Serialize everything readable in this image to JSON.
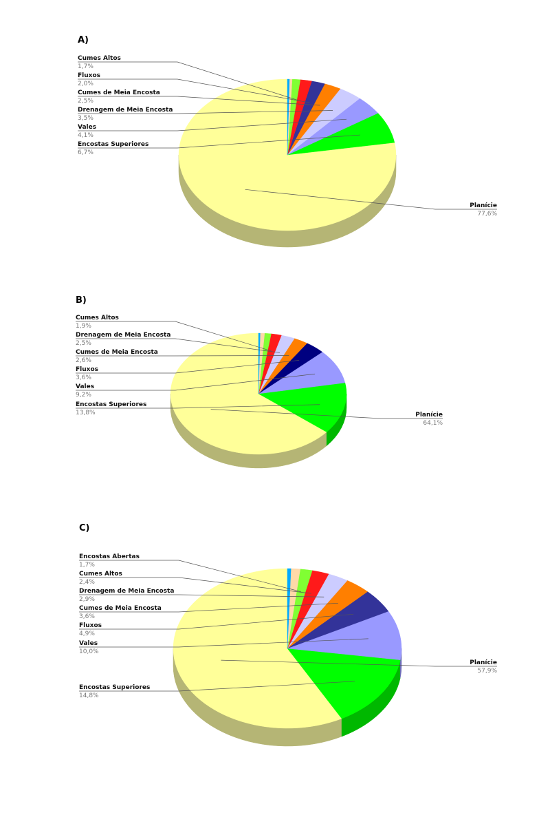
{
  "chart_data": [
    {
      "type": "pie",
      "panel_label": "A)",
      "colors": {
        "Planície": "#ffff99",
        "Encostas Superiores": "#00ff00",
        "Vales": "#9999ff",
        "Drenagem de Meia Encosta": "#ccccff",
        "Cumes de Meia Encosta": "#ff7f00",
        "Fluxos": "#333399",
        "Cumes Altos": "#ff1a1a",
        "Encostas Abertas": "#80ff33",
        "Outros": "#ffd9a8",
        "Outros2": "#00aaff"
      },
      "slices": [
        {
          "label": "Planície",
          "value_text": "77,6%",
          "value": 77.6,
          "color": "#ffff99",
          "side": "dark"
        },
        {
          "label": "Encostas Superiores",
          "value_text": "6,7%",
          "value": 6.7,
          "color": "#00ff00"
        },
        {
          "label": "Vales",
          "value_text": "4,1%",
          "value": 4.1,
          "color": "#9999ff"
        },
        {
          "label": "Drenagem de Meia Encosta",
          "value_text": "3,5%",
          "value": 3.5,
          "color": "#ccccff"
        },
        {
          "label": "Cumes de Meia Encosta",
          "value_text": "2,5%",
          "value": 2.5,
          "color": "#ff7f00"
        },
        {
          "label": "Fluxos",
          "value_text": "2,0%",
          "value": 2.0,
          "color": "#333399"
        },
        {
          "label": "Cumes Altos",
          "value_text": "1,7%",
          "value": 1.7,
          "color": "#ff1a1a"
        },
        {
          "label": "",
          "value_text": "",
          "value": 1.2,
          "color": "#80ff33"
        },
        {
          "label": "",
          "value_text": "",
          "value": 0.4,
          "color": "#ffd9a8"
        },
        {
          "label": "",
          "value_text": "",
          "value": 0.3,
          "color": "#00aaff"
        }
      ]
    },
    {
      "type": "pie",
      "panel_label": "B)",
      "slices": [
        {
          "label": "Planície",
          "value_text": "64,1%",
          "value": 64.1,
          "color": "#ffff99"
        },
        {
          "label": "Encostas Superiores",
          "value_text": "13,8%",
          "value": 13.8,
          "color": "#00ff00"
        },
        {
          "label": "Vales",
          "value_text": "9,2%",
          "value": 9.2,
          "color": "#9999ff"
        },
        {
          "label": "Fluxos",
          "value_text": "3,6%",
          "value": 3.6,
          "color": "#000080"
        },
        {
          "label": "Cumes de Meia Encosta",
          "value_text": "2,6%",
          "value": 2.6,
          "color": "#ff7f00"
        },
        {
          "label": "Drenagem de Meia Encosta",
          "value_text": "2,5%",
          "value": 2.5,
          "color": "#ccccff"
        },
        {
          "label": "Cumes Altos",
          "value_text": "1,9%",
          "value": 1.9,
          "color": "#ff1a1a"
        },
        {
          "label": "",
          "value_text": "",
          "value": 1.2,
          "color": "#80ff33"
        },
        {
          "label": "",
          "value_text": "",
          "value": 0.8,
          "color": "#ffd9a8"
        },
        {
          "label": "",
          "value_text": "",
          "value": 0.3,
          "color": "#00aaff"
        }
      ]
    },
    {
      "type": "pie",
      "panel_label": "C)",
      "slices": [
        {
          "label": "Planície",
          "value_text": "57,9%",
          "value": 57.9,
          "color": "#ffff99"
        },
        {
          "label": "Encostas Superiores",
          "value_text": "14,8%",
          "value": 14.8,
          "color": "#00ff00"
        },
        {
          "label": "Vales",
          "value_text": "10,0%",
          "value": 10.0,
          "color": "#9999ff"
        },
        {
          "label": "Fluxos",
          "value_text": "4,9%",
          "value": 4.9,
          "color": "#333399"
        },
        {
          "label": "Cumes de Meia Encosta",
          "value_text": "3,6%",
          "value": 3.6,
          "color": "#ff7f00"
        },
        {
          "label": "Drenagem de Meia Encosta",
          "value_text": "2,9%",
          "value": 2.9,
          "color": "#ccccff"
        },
        {
          "label": "Cumes Altos",
          "value_text": "2,4%",
          "value": 2.4,
          "color": "#ff1a1a"
        },
        {
          "label": "Encostas Abertas",
          "value_text": "1,7%",
          "value": 1.7,
          "color": "#80ff33"
        },
        {
          "label": "",
          "value_text": "",
          "value": 1.3,
          "color": "#ffd9a8"
        },
        {
          "label": "",
          "value_text": "",
          "value": 0.5,
          "color": "#00aaff"
        }
      ]
    }
  ]
}
